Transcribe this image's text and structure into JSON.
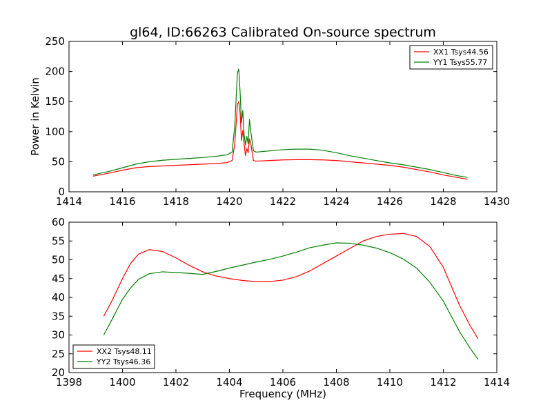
{
  "chart_data": [
    {
      "type": "line",
      "title": "gl64, ID:66263 Calibrated On-source spectrum",
      "xlabel": "",
      "ylabel": "Power in Kelvin",
      "xlim": [
        1414,
        1430
      ],
      "ylim": [
        0,
        250
      ],
      "xticks": [
        1414,
        1416,
        1418,
        1420,
        1422,
        1424,
        1426,
        1428,
        1430
      ],
      "yticks": [
        0,
        50,
        100,
        150,
        200,
        250
      ],
      "grid": false,
      "legend_position": "top-right",
      "series": [
        {
          "name": "XX1 Tsys44.56",
          "color": "#ff0000",
          "x": [
            1414.9,
            1415.5,
            1416.0,
            1416.5,
            1417.0,
            1417.5,
            1418.0,
            1418.5,
            1419.0,
            1419.5,
            1419.9,
            1420.1,
            1420.2,
            1420.3,
            1420.35,
            1420.4,
            1420.45,
            1420.5,
            1420.55,
            1420.6,
            1420.65,
            1420.7,
            1420.75,
            1420.8,
            1420.9,
            1421.0,
            1421.5,
            1422.0,
            1422.5,
            1423.0,
            1423.5,
            1424.0,
            1424.5,
            1425.0,
            1425.5,
            1426.0,
            1426.5,
            1427.0,
            1427.5,
            1428.0,
            1428.5,
            1428.9
          ],
          "y": [
            26,
            31,
            36,
            40,
            42,
            43,
            44,
            45,
            46,
            47,
            48.5,
            52,
            80,
            145,
            150,
            130,
            85,
            102,
            80,
            60,
            72,
            65,
            88,
            80,
            52,
            51,
            52,
            53,
            53.5,
            53.5,
            53,
            52,
            50,
            48,
            46,
            44,
            41,
            37,
            33,
            28,
            24,
            21
          ]
        },
        {
          "name": "YY1 Tsys55.77",
          "color": "#008000",
          "x": [
            1414.9,
            1415.5,
            1416.0,
            1416.5,
            1417.0,
            1417.5,
            1418.0,
            1418.5,
            1419.0,
            1419.5,
            1419.9,
            1420.1,
            1420.2,
            1420.3,
            1420.35,
            1420.4,
            1420.45,
            1420.5,
            1420.55,
            1420.6,
            1420.65,
            1420.7,
            1420.75,
            1420.8,
            1420.9,
            1421.0,
            1421.5,
            1422.0,
            1422.5,
            1423.0,
            1423.5,
            1424.0,
            1424.5,
            1425.0,
            1425.5,
            1426.0,
            1426.5,
            1427.0,
            1427.5,
            1428.0,
            1428.5,
            1428.9
          ],
          "y": [
            28,
            34,
            40,
            46,
            50,
            52.5,
            54,
            55.5,
            57,
            59,
            61.5,
            66,
            110,
            198,
            204,
            165,
            115,
            135,
            95,
            78,
            92,
            80,
            120,
            100,
            68,
            66,
            68,
            70,
            71,
            71,
            69,
            65,
            60,
            56,
            52,
            48,
            45,
            41,
            37,
            32,
            27,
            24
          ]
        }
      ]
    },
    {
      "type": "line",
      "title": "",
      "xlabel": "Frequency (MHz)",
      "ylabel": "",
      "xlim": [
        1398,
        1414
      ],
      "ylim": [
        20,
        60
      ],
      "xticks": [
        1398,
        1400,
        1402,
        1404,
        1406,
        1408,
        1410,
        1412,
        1414
      ],
      "yticks": [
        20,
        25,
        30,
        35,
        40,
        45,
        50,
        55,
        60
      ],
      "grid": false,
      "legend_position": "bottom-left",
      "series": [
        {
          "name": "XX2 Tsys48.11",
          "color": "#ff0000",
          "x": [
            1399.3,
            1399.6,
            1400.0,
            1400.3,
            1400.6,
            1401.0,
            1401.5,
            1402.0,
            1402.5,
            1403.0,
            1403.5,
            1404.0,
            1404.5,
            1405.0,
            1405.5,
            1406.0,
            1406.5,
            1407.0,
            1407.5,
            1408.0,
            1408.5,
            1409.0,
            1409.5,
            1410.0,
            1410.5,
            1411.0,
            1411.5,
            1412.0,
            1412.3,
            1412.6,
            1413.0,
            1413.3
          ],
          "y": [
            35,
            39,
            45,
            49,
            51.5,
            52.7,
            52.2,
            50.5,
            48.5,
            46.8,
            45.7,
            45,
            44.5,
            44.2,
            44.2,
            44.6,
            45.5,
            47,
            49,
            51,
            53,
            55,
            56.2,
            56.8,
            57,
            56.2,
            53.5,
            48,
            43,
            38,
            32.5,
            29
          ]
        },
        {
          "name": "YY2 Tsys46.36",
          "color": "#008000",
          "x": [
            1399.3,
            1399.6,
            1400.0,
            1400.3,
            1400.6,
            1401.0,
            1401.5,
            1402.0,
            1402.5,
            1403.0,
            1403.5,
            1404.0,
            1404.5,
            1405.0,
            1405.5,
            1406.0,
            1406.5,
            1407.0,
            1407.5,
            1408.0,
            1408.5,
            1409.0,
            1409.5,
            1410.0,
            1410.5,
            1411.0,
            1411.5,
            1412.0,
            1412.3,
            1412.6,
            1413.0,
            1413.3
          ],
          "y": [
            30,
            34,
            39.5,
            42.5,
            44.8,
            46.3,
            46.8,
            46.6,
            46.4,
            46.1,
            46.9,
            47.8,
            48.6,
            49.4,
            50.1,
            51,
            52,
            53.2,
            53.9,
            54.5,
            54.4,
            53.9,
            53.1,
            51.9,
            50.2,
            47.8,
            44,
            39,
            35,
            31,
            26.5,
            23.5
          ]
        }
      ]
    }
  ]
}
